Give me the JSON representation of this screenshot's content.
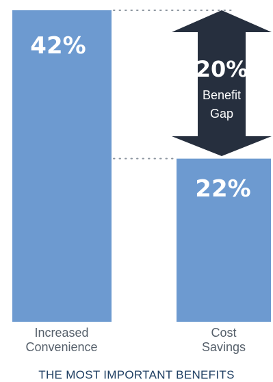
{
  "colors": {
    "bar": "#6d9ad0",
    "arrow": "#262f3e",
    "dots": "#8c959f",
    "category_text": "#555f6a",
    "footer_text": "#1f3f63"
  },
  "chart_data": {
    "type": "bar",
    "categories": [
      "Increased Convenience",
      "Cost Savings"
    ],
    "category_lines": [
      [
        "Increased",
        "Convenience"
      ],
      [
        "Cost",
        "Savings"
      ]
    ],
    "values": [
      42,
      22
    ],
    "value_labels": [
      "42%",
      "22%"
    ],
    "unit": "%",
    "ylim": [
      0,
      42
    ],
    "grid": false,
    "annotation": {
      "type": "double-arrow",
      "from_value": 22,
      "to_value": 42,
      "value": 20,
      "value_label": "20%",
      "text_lines": [
        "Benefit",
        "Gap"
      ]
    },
    "title": "THE MOST IMPORTANT BENEFITS"
  }
}
